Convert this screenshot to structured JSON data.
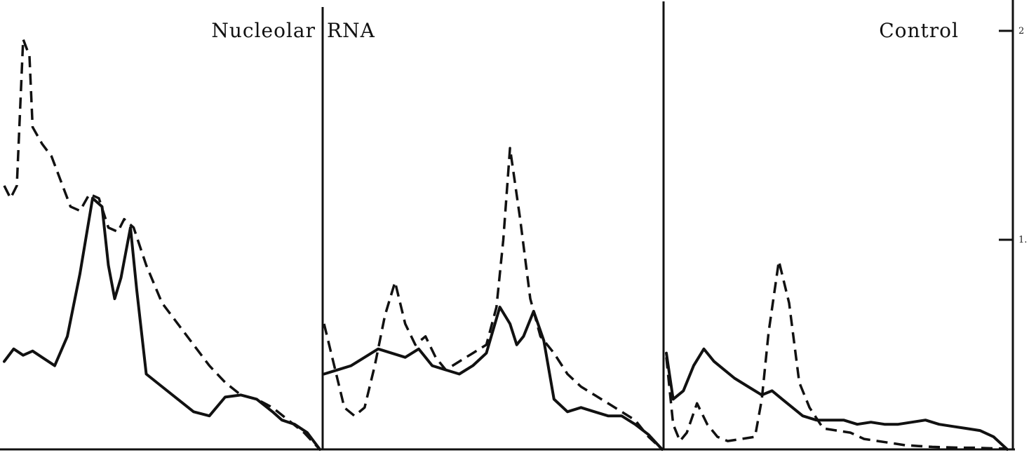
{
  "chart_data": {
    "type": "line",
    "panels": [
      {
        "label": "Nucleolar",
        "series": [
          {
            "style": "solid",
            "points": [
              [
                0,
                0.21
              ],
              [
                0.03,
                0.24
              ],
              [
                0.06,
                0.225
              ],
              [
                0.09,
                0.235
              ],
              [
                0.12,
                0.22
              ],
              [
                0.16,
                0.2
              ],
              [
                0.2,
                0.27
              ],
              [
                0.24,
                0.42
              ],
              [
                0.28,
                0.6
              ],
              [
                0.31,
                0.58
              ],
              [
                0.33,
                0.44
              ],
              [
                0.35,
                0.36
              ],
              [
                0.37,
                0.41
              ],
              [
                0.4,
                0.53
              ],
              [
                0.42,
                0.38
              ],
              [
                0.45,
                0.18
              ],
              [
                0.5,
                0.15
              ],
              [
                0.55,
                0.12
              ],
              [
                0.6,
                0.09
              ],
              [
                0.65,
                0.08
              ],
              [
                0.7,
                0.125
              ],
              [
                0.75,
                0.13
              ],
              [
                0.8,
                0.12
              ],
              [
                0.85,
                0.09
              ],
              [
                0.88,
                0.07
              ],
              [
                0.92,
                0.06
              ],
              [
                0.96,
                0.04
              ],
              [
                1,
                0.0
              ]
            ]
          },
          {
            "style": "dashed",
            "points": [
              [
                0,
                0.63
              ],
              [
                0.02,
                0.6
              ],
              [
                0.04,
                0.63
              ],
              [
                0.06,
                0.98
              ],
              [
                0.08,
                0.94
              ],
              [
                0.09,
                0.77
              ],
              [
                0.12,
                0.73
              ],
              [
                0.15,
                0.7
              ],
              [
                0.18,
                0.64
              ],
              [
                0.21,
                0.58
              ],
              [
                0.24,
                0.57
              ],
              [
                0.27,
                0.61
              ],
              [
                0.3,
                0.6
              ],
              [
                0.33,
                0.53
              ],
              [
                0.36,
                0.52
              ],
              [
                0.38,
                0.55
              ],
              [
                0.41,
                0.53
              ],
              [
                0.45,
                0.44
              ],
              [
                0.5,
                0.35
              ],
              [
                0.55,
                0.3
              ],
              [
                0.6,
                0.25
              ],
              [
                0.65,
                0.2
              ],
              [
                0.7,
                0.16
              ],
              [
                0.75,
                0.13
              ],
              [
                0.8,
                0.12
              ],
              [
                0.85,
                0.1
              ],
              [
                0.9,
                0.07
              ],
              [
                0.95,
                0.04
              ],
              [
                1,
                0.0
              ]
            ]
          }
        ]
      },
      {
        "label": "RNA",
        "series": [
          {
            "style": "solid",
            "points": [
              [
                0,
                0.18
              ],
              [
                0.04,
                0.19
              ],
              [
                0.08,
                0.2
              ],
              [
                0.12,
                0.22
              ],
              [
                0.16,
                0.24
              ],
              [
                0.2,
                0.23
              ],
              [
                0.24,
                0.22
              ],
              [
                0.28,
                0.24
              ],
              [
                0.32,
                0.2
              ],
              [
                0.36,
                0.19
              ],
              [
                0.4,
                0.18
              ],
              [
                0.44,
                0.2
              ],
              [
                0.48,
                0.23
              ],
              [
                0.52,
                0.34
              ],
              [
                0.55,
                0.3
              ],
              [
                0.57,
                0.25
              ],
              [
                0.59,
                0.27
              ],
              [
                0.62,
                0.33
              ],
              [
                0.65,
                0.26
              ],
              [
                0.68,
                0.12
              ],
              [
                0.72,
                0.09
              ],
              [
                0.76,
                0.1
              ],
              [
                0.8,
                0.09
              ],
              [
                0.84,
                0.08
              ],
              [
                0.88,
                0.08
              ],
              [
                0.92,
                0.06
              ],
              [
                0.96,
                0.035
              ],
              [
                1,
                0.0
              ]
            ]
          },
          {
            "style": "dashed",
            "points": [
              [
                0,
                0.3
              ],
              [
                0.03,
                0.2
              ],
              [
                0.06,
                0.1
              ],
              [
                0.09,
                0.08
              ],
              [
                0.12,
                0.1
              ],
              [
                0.15,
                0.2
              ],
              [
                0.18,
                0.32
              ],
              [
                0.21,
                0.4
              ],
              [
                0.24,
                0.3
              ],
              [
                0.27,
                0.25
              ],
              [
                0.3,
                0.27
              ],
              [
                0.33,
                0.22
              ],
              [
                0.36,
                0.19
              ],
              [
                0.4,
                0.21
              ],
              [
                0.44,
                0.23
              ],
              [
                0.48,
                0.25
              ],
              [
                0.51,
                0.34
              ],
              [
                0.53,
                0.5
              ],
              [
                0.55,
                0.72
              ],
              [
                0.58,
                0.55
              ],
              [
                0.61,
                0.36
              ],
              [
                0.64,
                0.27
              ],
              [
                0.68,
                0.23
              ],
              [
                0.72,
                0.18
              ],
              [
                0.76,
                0.15
              ],
              [
                0.8,
                0.13
              ],
              [
                0.84,
                0.11
              ],
              [
                0.88,
                0.09
              ],
              [
                0.92,
                0.07
              ],
              [
                0.96,
                0.03
              ],
              [
                1,
                0.0
              ]
            ]
          }
        ]
      },
      {
        "label": "Control",
        "series": [
          {
            "style": "solid",
            "points": [
              [
                0,
                0.23
              ],
              [
                0.02,
                0.12
              ],
              [
                0.05,
                0.14
              ],
              [
                0.08,
                0.2
              ],
              [
                0.11,
                0.24
              ],
              [
                0.14,
                0.21
              ],
              [
                0.17,
                0.19
              ],
              [
                0.2,
                0.17
              ],
              [
                0.24,
                0.15
              ],
              [
                0.28,
                0.13
              ],
              [
                0.31,
                0.14
              ],
              [
                0.34,
                0.12
              ],
              [
                0.37,
                0.1
              ],
              [
                0.4,
                0.08
              ],
              [
                0.44,
                0.07
              ],
              [
                0.48,
                0.07
              ],
              [
                0.52,
                0.07
              ],
              [
                0.56,
                0.06
              ],
              [
                0.6,
                0.065
              ],
              [
                0.64,
                0.06
              ],
              [
                0.68,
                0.06
              ],
              [
                0.72,
                0.065
              ],
              [
                0.76,
                0.07
              ],
              [
                0.8,
                0.06
              ],
              [
                0.84,
                0.055
              ],
              [
                0.88,
                0.05
              ],
              [
                0.92,
                0.045
              ],
              [
                0.96,
                0.03
              ],
              [
                1,
                0.0
              ]
            ]
          },
          {
            "style": "dashed",
            "points": [
              [
                0,
                0.22
              ],
              [
                0.02,
                0.06
              ],
              [
                0.04,
                0.02
              ],
              [
                0.06,
                0.04
              ],
              [
                0.09,
                0.11
              ],
              [
                0.12,
                0.06
              ],
              [
                0.15,
                0.03
              ],
              [
                0.18,
                0.02
              ],
              [
                0.22,
                0.025
              ],
              [
                0.26,
                0.03
              ],
              [
                0.28,
                0.12
              ],
              [
                0.3,
                0.28
              ],
              [
                0.33,
                0.45
              ],
              [
                0.36,
                0.35
              ],
              [
                0.39,
                0.16
              ],
              [
                0.42,
                0.1
              ],
              [
                0.46,
                0.05
              ],
              [
                0.5,
                0.045
              ],
              [
                0.54,
                0.04
              ],
              [
                0.58,
                0.025
              ],
              [
                0.62,
                0.02
              ],
              [
                0.66,
                0.015
              ],
              [
                0.7,
                0.01
              ],
              [
                0.74,
                0.008
              ],
              [
                0.78,
                0.006
              ],
              [
                0.82,
                0.005
              ],
              [
                0.86,
                0.004
              ],
              [
                0.9,
                0.004
              ],
              [
                0.94,
                0.003
              ],
              [
                0.98,
                0.002
              ],
              [
                1,
                0.002
              ]
            ]
          }
        ]
      }
    ],
    "y_axis": {
      "side": "right",
      "ticks": [
        {
          "value": 1.0,
          "label": "1."
        },
        {
          "value": 2.0,
          "label": "2"
        }
      ]
    }
  }
}
